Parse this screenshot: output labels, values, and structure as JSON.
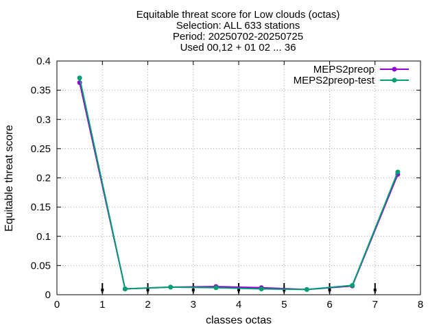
{
  "chart_data": {
    "type": "line",
    "title_lines": [
      "Equitable threat score  for Low clouds (octas)",
      "Selection: ALL    633 stations",
      "Period: 20250702-20250725",
      "Used 00,12 + 01 02 ... 36"
    ],
    "xlabel": "classes octas",
    "ylabel": "Equitable threat score",
    "xlim": [
      0,
      8
    ],
    "ylim": [
      0,
      0.4
    ],
    "x_ticks": [
      0,
      1,
      2,
      3,
      4,
      5,
      6,
      7,
      8
    ],
    "x_tick_labels": [
      "0",
      "1",
      "2",
      "3",
      "4",
      "5",
      "6",
      "7",
      "8"
    ],
    "y_ticks": [
      0,
      0.05,
      0.1,
      0.15,
      0.2,
      0.25,
      0.3,
      0.35,
      0.4
    ],
    "y_tick_labels": [
      "0",
      "0.05",
      "0.1",
      "0.15",
      "0.2",
      "0.25",
      "0.3",
      "0.35",
      "0.4"
    ],
    "grid": true,
    "legend_position": "top-right",
    "x": [
      0.5,
      1.5,
      2.5,
      3.5,
      4.5,
      5.5,
      6.5,
      7.5
    ],
    "series": [
      {
        "name": "MEPS2preop",
        "color": "#9400d3",
        "values": [
          0.363,
          0.01,
          0.013,
          0.014,
          0.012,
          0.009,
          0.015,
          0.206
        ]
      },
      {
        "name": "MEPS2preop-test",
        "color": "#009e73",
        "values": [
          0.371,
          0.01,
          0.013,
          0.012,
          0.01,
          0.009,
          0.016,
          0.21
        ]
      }
    ],
    "error_bar_x": [
      1,
      2,
      3,
      4,
      5,
      6,
      7
    ],
    "error_bar_color": "#000000"
  }
}
